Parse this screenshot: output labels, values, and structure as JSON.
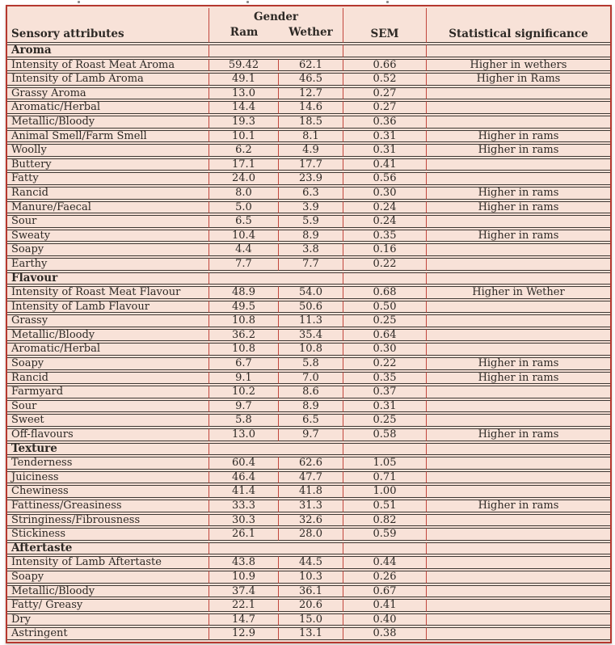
{
  "colors": {
    "bg": "#f8e2d8",
    "border_red": "#b5382f",
    "divider_red": "#c2463d",
    "line_dark": "#3e3833",
    "text": "#2d2925",
    "page_bg": "#ffffff"
  },
  "table": {
    "header": {
      "attribute_label": "Sensory attributes",
      "gender_label": "Gender",
      "ram_label": "Ram",
      "wether_label": "Wether",
      "sem_label": "SEM",
      "significance_label": "Statistical significance"
    },
    "sections": [
      {
        "name": "Aroma",
        "rows": [
          {
            "attribute": "Intensity of Roast Meat Aroma",
            "ram": "59.42",
            "wether": "62.1",
            "sem": "0.66",
            "significance": "Higher in wethers"
          },
          {
            "attribute": "Intensity of Lamb Aroma",
            "ram": "49.1",
            "wether": "46.5",
            "sem": "0.52",
            "significance": "Higher in Rams"
          },
          {
            "attribute": "Grassy Aroma",
            "ram": "13.0",
            "wether": "12.7",
            "sem": "0.27",
            "significance": ""
          },
          {
            "attribute": "Aromatic/Herbal",
            "ram": "14.4",
            "wether": "14.6",
            "sem": "0.27",
            "significance": ""
          },
          {
            "attribute": "Metallic/Bloody",
            "ram": "19.3",
            "wether": "18.5",
            "sem": "0.36",
            "significance": ""
          },
          {
            "attribute": "Animal Smell/Farm Smell",
            "ram": "10.1",
            "wether": "8.1",
            "sem": "0.31",
            "significance": "Higher in rams"
          },
          {
            "attribute": "Woolly",
            "ram": "6.2",
            "wether": "4.9",
            "sem": "0.31",
            "significance": "Higher in rams"
          },
          {
            "attribute": "Buttery",
            "ram": "17.1",
            "wether": "17.7",
            "sem": "0.41",
            "significance": ""
          },
          {
            "attribute": "Fatty",
            "ram": "24.0",
            "wether": "23.9",
            "sem": "0.56",
            "significance": ""
          },
          {
            "attribute": "Rancid",
            "ram": "8.0",
            "wether": "6.3",
            "sem": "0.30",
            "significance": "Higher in rams"
          },
          {
            "attribute": "Manure/Faecal",
            "ram": "5.0",
            "wether": "3.9",
            "sem": "0.24",
            "significance": "Higher in rams"
          },
          {
            "attribute": "Sour",
            "ram": "6.5",
            "wether": "5.9",
            "sem": "0.24",
            "significance": ""
          },
          {
            "attribute": "Sweaty",
            "ram": "10.4",
            "wether": "8.9",
            "sem": "0.35",
            "significance": "Higher in rams"
          },
          {
            "attribute": "Soapy",
            "ram": "4.4",
            "wether": "3.8",
            "sem": "0.16",
            "significance": ""
          },
          {
            "attribute": "Earthy",
            "ram": "7.7",
            "wether": "7.7",
            "sem": "0.22",
            "significance": ""
          }
        ]
      },
      {
        "name": "Flavour",
        "rows": [
          {
            "attribute": "Intensity of Roast Meat Flavour",
            "ram": "48.9",
            "wether": "54.0",
            "sem": "0.68",
            "significance": "Higher in Wether"
          },
          {
            "attribute": "Intensity of Lamb Flavour",
            "ram": "49.5",
            "wether": "50.6",
            "sem": "0.50",
            "significance": ""
          },
          {
            "attribute": "Grassy",
            "ram": "10.8",
            "wether": "11.3",
            "sem": "0.25",
            "significance": ""
          },
          {
            "attribute": "Metallic/Bloody",
            "ram": "36.2",
            "wether": "35.4",
            "sem": "0.64",
            "significance": ""
          },
          {
            "attribute": "Aromatic/Herbal",
            "ram": "10.8",
            "wether": "10.8",
            "sem": "0.30",
            "significance": ""
          },
          {
            "attribute": "Soapy",
            "ram": "6.7",
            "wether": "5.8",
            "sem": "0.22",
            "significance": "Higher in rams"
          },
          {
            "attribute": "Rancid",
            "ram": "9.1",
            "wether": "7.0",
            "sem": "0.35",
            "significance": "Higher in rams"
          },
          {
            "attribute": "Farmyard",
            "ram": "10.2",
            "wether": "8.6",
            "sem": "0.37",
            "significance": ""
          },
          {
            "attribute": "Sour",
            "ram": "9.7",
            "wether": "8.9",
            "sem": "0.31",
            "significance": ""
          },
          {
            "attribute": "Sweet",
            "ram": "5.8",
            "wether": "6.5",
            "sem": "0.25",
            "significance": ""
          },
          {
            "attribute": "Off-flavours",
            "ram": "13.0",
            "wether": "9.7",
            "sem": "0.58",
            "significance": "Higher in rams"
          }
        ]
      },
      {
        "name": "Texture",
        "rows": [
          {
            "attribute": "Tenderness",
            "ram": "60.4",
            "wether": "62.6",
            "sem": "1.05",
            "significance": ""
          },
          {
            "attribute": "Juiciness",
            "ram": "46.4",
            "wether": "47.7",
            "sem": "0.71",
            "significance": ""
          },
          {
            "attribute": "Chewiness",
            "ram": "41.4",
            "wether": "41.8",
            "sem": "1.00",
            "significance": ""
          },
          {
            "attribute": "Fattiness/Greasiness",
            "ram": "33.3",
            "wether": "31.3",
            "sem": "0.51",
            "significance": "Higher in rams"
          },
          {
            "attribute": "Stringiness/Fibrousness",
            "ram": "30.3",
            "wether": "32.6",
            "sem": "0.82",
            "significance": ""
          },
          {
            "attribute": "Stickiness",
            "ram": "26.1",
            "wether": "28.0",
            "sem": "0.59",
            "significance": ""
          }
        ]
      },
      {
        "name": "Aftertaste",
        "rows": [
          {
            "attribute": "Intensity of Lamb Aftertaste",
            "ram": "43.8",
            "wether": "44.5",
            "sem": "0.44",
            "significance": ""
          },
          {
            "attribute": "Soapy",
            "ram": "10.9",
            "wether": "10.3",
            "sem": "0.26",
            "significance": ""
          },
          {
            "attribute": "Metallic/Bloody",
            "ram": "37.4",
            "wether": "36.1",
            "sem": "0.67",
            "significance": ""
          },
          {
            "attribute": "Fatty/ Greasy",
            "ram": "22.1",
            "wether": "20.6",
            "sem": "0.41",
            "significance": ""
          },
          {
            "attribute": "Dry",
            "ram": "14.7",
            "wether": "15.0",
            "sem": "0.40",
            "significance": ""
          },
          {
            "attribute": "Astringent",
            "ram": "12.9",
            "wether": "13.1",
            "sem": "0.38",
            "significance": ""
          }
        ]
      }
    ]
  }
}
